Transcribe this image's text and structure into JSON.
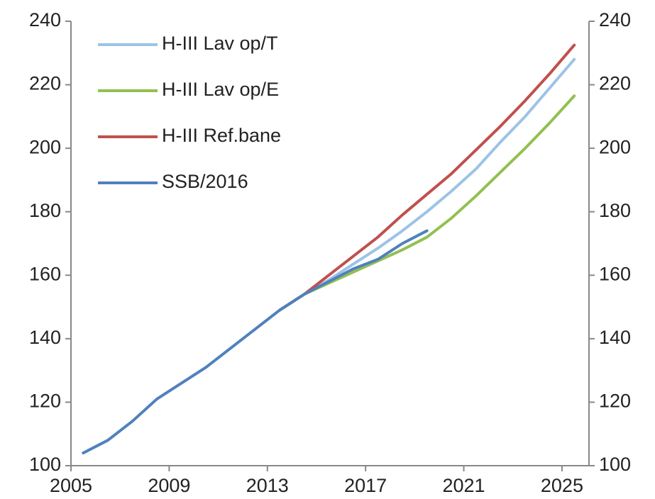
{
  "chart_data": {
    "type": "line",
    "x": [
      2005.5,
      2006.5,
      2007.5,
      2008.5,
      2009.5,
      2010.5,
      2011.5,
      2012.5,
      2013.5,
      2014.5,
      2015.5,
      2016.5,
      2017.5,
      2018.5,
      2019.5,
      2020.5,
      2021.5,
      2022.5,
      2023.5,
      2024.5,
      2025.5
    ],
    "series": [
      {
        "name": "H-III Lav op/T",
        "color": "#9dc3e6",
        "values": [
          null,
          null,
          null,
          null,
          null,
          null,
          null,
          null,
          149,
          154,
          158.5,
          163.5,
          168.5,
          174,
          180,
          186.5,
          193.5,
          202,
          210,
          219,
          228
        ]
      },
      {
        "name": "H-III Lav op/E",
        "color": "#92c050",
        "values": [
          null,
          null,
          null,
          null,
          null,
          null,
          null,
          null,
          149,
          154,
          157.5,
          161,
          164.5,
          168,
          172,
          178,
          185,
          192.5,
          200,
          208,
          216.5
        ]
      },
      {
        "name": "H-III Ref.bane",
        "color": "#c0504d",
        "values": [
          null,
          null,
          null,
          null,
          null,
          null,
          null,
          null,
          149,
          154,
          160,
          166,
          172,
          179,
          185.5,
          192,
          199.5,
          207,
          215,
          223.5,
          232.5
        ]
      },
      {
        "name": "SSB/2016",
        "color": "#4f81bd",
        "values": [
          104,
          108,
          114,
          121,
          126,
          131,
          137,
          143,
          149,
          154,
          158,
          162,
          165,
          170,
          174,
          null,
          null,
          null,
          null,
          null,
          null
        ]
      }
    ],
    "xlim": [
      2005,
      2026.1
    ],
    "xticks": [
      2005,
      2009,
      2013,
      2017,
      2021,
      2025
    ],
    "ylim": [
      100,
      240
    ],
    "yticks": [
      100,
      120,
      140,
      160,
      180,
      200,
      220,
      240
    ],
    "y2lim": [
      100,
      240
    ],
    "y2ticks": [
      100,
      120,
      140,
      160,
      180,
      200,
      220,
      240
    ],
    "legend": "upper left"
  }
}
